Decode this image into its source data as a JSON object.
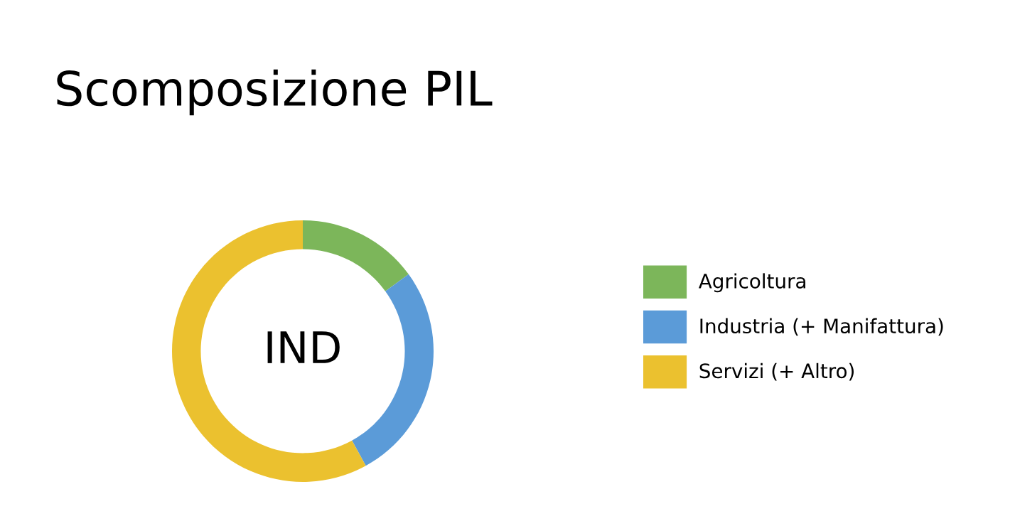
{
  "chart_data": {
    "type": "donut",
    "title": "Scomposizione PIL",
    "categories": [
      "Agricoltura",
      "Industria (+ Manifattura)",
      "Servizi (+ Altro)"
    ],
    "values": [
      15,
      27,
      58
    ],
    "colors": [
      "#7cb65a",
      "#5b9bd8",
      "#ebc12f"
    ],
    "annotations": [
      "IND"
    ],
    "legend": "right"
  }
}
